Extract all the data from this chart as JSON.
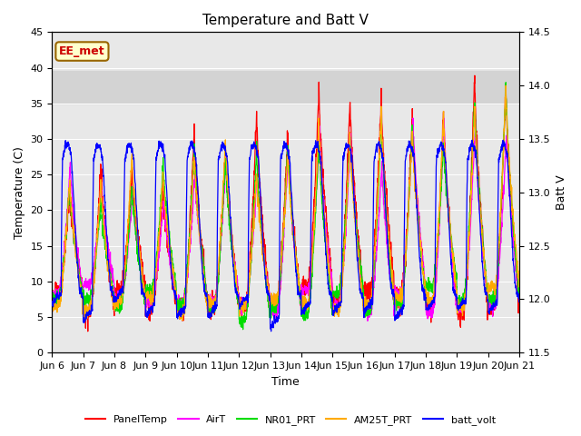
{
  "title": "Temperature and Batt V",
  "xlabel": "Time",
  "ylabel_left": "Temperature (C)",
  "ylabel_right": "Batt V",
  "annotation": "EE_met",
  "ylim_left": [
    0,
    45
  ],
  "ylim_right": [
    11.5,
    14.5
  ],
  "shaded_ymin": 35,
  "shaded_ymax": 39.5,
  "x_ticks": [
    0,
    1,
    2,
    3,
    4,
    5,
    6,
    7,
    8,
    9,
    10,
    11,
    12,
    13,
    14,
    15
  ],
  "x_tick_labels": [
    "Jun 6",
    "Jun 7",
    "Jun 8",
    "Jun 9",
    "Jun 10",
    "Jun 11",
    "Jun 12",
    "Jun 13",
    "Jun 14",
    "Jun 15",
    "Jun 16",
    "Jun 17",
    "Jun 18",
    "Jun 19",
    "Jun 20",
    "Jun 21"
  ],
  "yticks_left": [
    0,
    5,
    10,
    15,
    20,
    25,
    30,
    35,
    40,
    45
  ],
  "yticks_right": [
    11.5,
    12.0,
    12.5,
    13.0,
    13.5,
    14.0,
    14.5
  ],
  "legend_entries": [
    "PanelTemp",
    "AirT",
    "NR01_PRT",
    "AM25T_PRT",
    "batt_volt"
  ],
  "colors": {
    "PanelTemp": "#ff0000",
    "AirT": "#ff00ff",
    "NR01_PRT": "#00dd00",
    "AM25T_PRT": "#ffaa00",
    "batt_volt": "#0000ff"
  },
  "background_color": "#ffffff",
  "plot_bg_color": "#e8e8e8",
  "shaded_color": "#d3d3d3",
  "grid_color": "#ffffff",
  "title_fontsize": 11,
  "label_fontsize": 9,
  "tick_fontsize": 8,
  "linewidth": 0.9,
  "annotation_facecolor": "#ffffcc",
  "annotation_edgecolor": "#996600",
  "annotation_textcolor": "#cc0000"
}
